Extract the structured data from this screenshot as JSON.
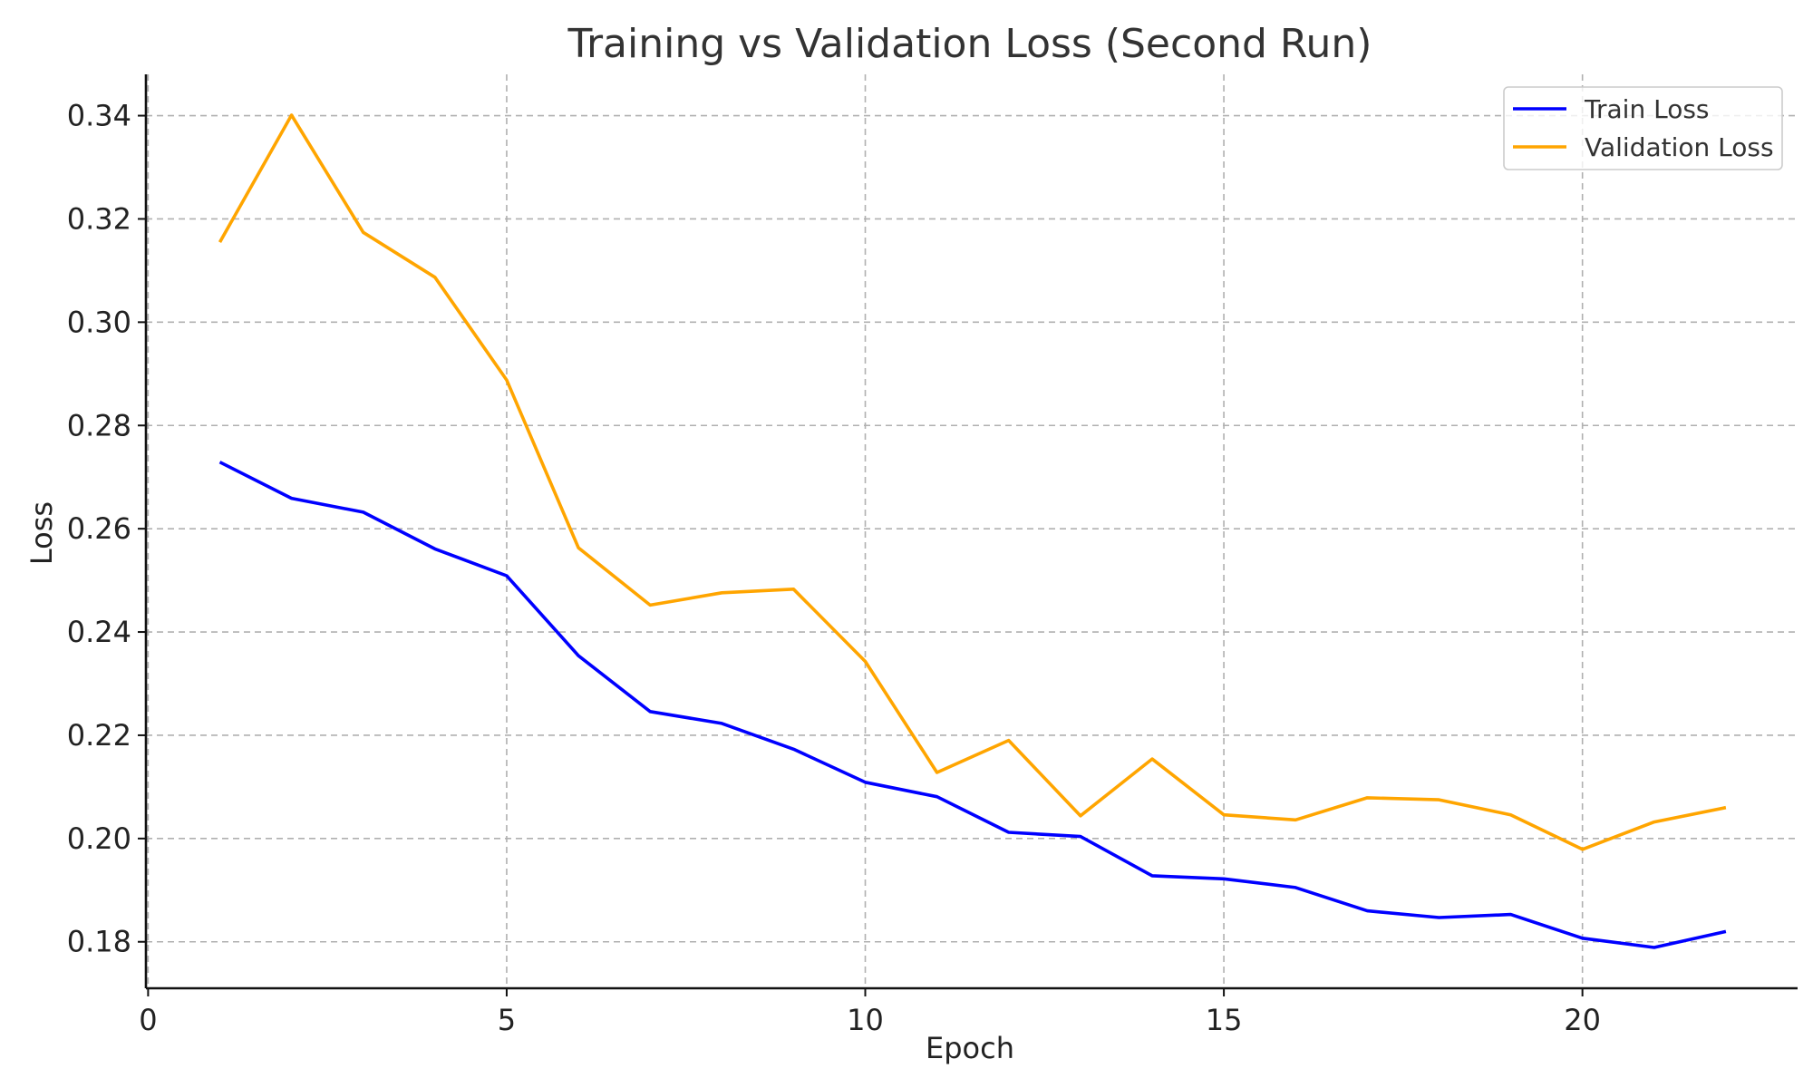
{
  "chart_data": {
    "type": "line",
    "title": "Training vs Validation Loss (Second Run)",
    "xlabel": "Epoch",
    "ylabel": "Loss",
    "xlim": [
      -0.03,
      23
    ],
    "ylim": [
      0.171,
      0.348
    ],
    "xticks": [
      0,
      5,
      10,
      15,
      20
    ],
    "xtick_labels": [
      "0",
      "5",
      "10",
      "15",
      "20"
    ],
    "yticks": [
      0.18,
      0.2,
      0.22,
      0.24,
      0.26,
      0.28,
      0.3,
      0.32,
      0.34
    ],
    "ytick_labels": [
      "0.18",
      "0.20",
      "0.22",
      "0.24",
      "0.26",
      "0.28",
      "0.30",
      "0.32",
      "0.34"
    ],
    "grid": true,
    "legend_position": "top-right",
    "x": [
      1,
      2,
      3,
      4,
      5,
      6,
      7,
      8,
      9,
      10,
      11,
      12,
      13,
      14,
      15,
      16,
      17,
      18,
      19,
      20,
      21,
      22
    ],
    "series": [
      {
        "name": "Train Loss",
        "color": "#0000ff",
        "values": [
          0.2729,
          0.2659,
          0.2632,
          0.2561,
          0.2509,
          0.2354,
          0.2246,
          0.2223,
          0.2173,
          0.2109,
          0.2081,
          0.2012,
          0.2004,
          0.1928,
          0.1922,
          0.1905,
          0.186,
          0.1847,
          0.1853,
          0.1807,
          0.1789,
          0.182
        ]
      },
      {
        "name": "Validation Loss",
        "color": "#ffa500",
        "values": [
          0.3155,
          0.3401,
          0.3174,
          0.3087,
          0.2888,
          0.2563,
          0.2452,
          0.2476,
          0.2483,
          0.2343,
          0.2128,
          0.219,
          0.2044,
          0.2154,
          0.2046,
          0.2036,
          0.2079,
          0.2075,
          0.2046,
          0.1979,
          0.2032,
          0.206
        ]
      }
    ]
  }
}
